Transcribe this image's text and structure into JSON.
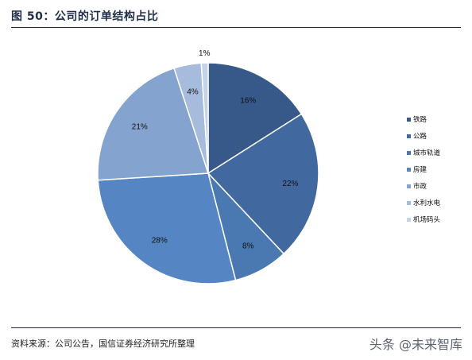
{
  "header": {
    "title": "图 50：公司的订单结构占比"
  },
  "chart_data": {
    "type": "pie",
    "categories": [
      "铁路",
      "公路",
      "城市轨道",
      "房建",
      "市政",
      "水利水电",
      "机场码头"
    ],
    "values": [
      16,
      22,
      8,
      28,
      21,
      4,
      1
    ],
    "labels": [
      "16%",
      "22%",
      "8%",
      "28%",
      "21%",
      "4%",
      "1%"
    ],
    "colors": [
      "#36598a",
      "#41689f",
      "#4a78b1",
      "#5585c2",
      "#85a3cf",
      "#a7bbdc",
      "#c6d2e7"
    ],
    "legend_position": "right",
    "title": "",
    "start_angle_deg": 0,
    "direction": "clockwise"
  },
  "footer": {
    "source": "资料来源：公司公告，国信证券经济研究所整理",
    "watermark": "头条 @未来智库"
  }
}
